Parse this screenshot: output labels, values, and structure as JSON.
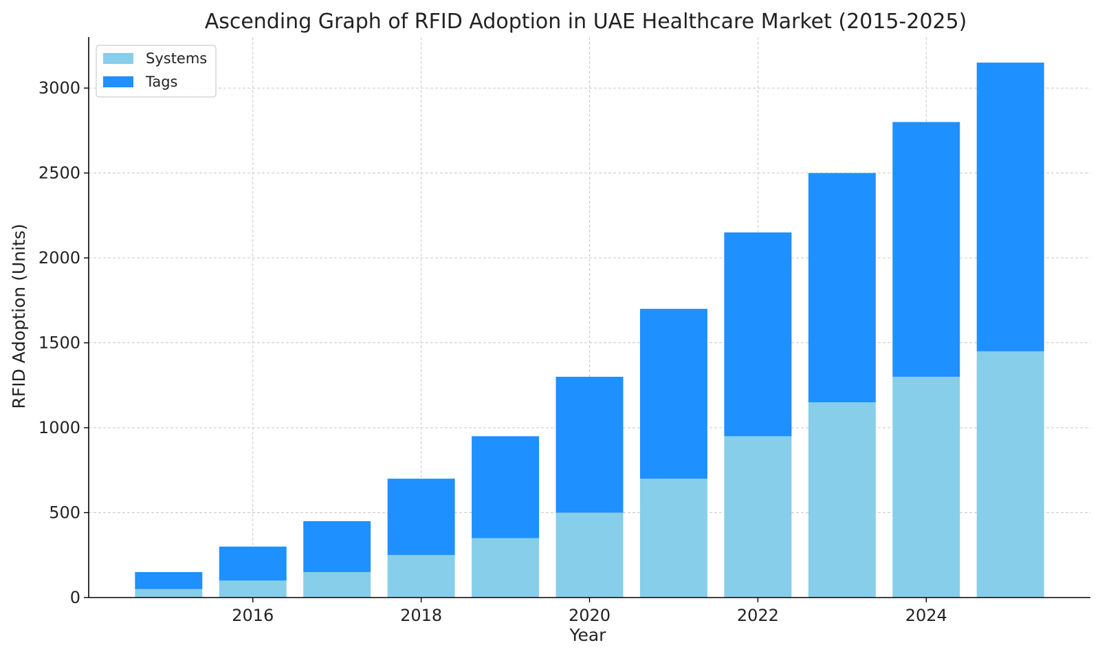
{
  "chart_data": {
    "type": "bar",
    "stacked": true,
    "title": "Ascending Graph of RFID Adoption in UAE Healthcare Market (2015-2025)",
    "xlabel": "Year",
    "ylabel": "RFID Adoption (Units)",
    "x": [
      2015,
      2016,
      2017,
      2018,
      2019,
      2020,
      2021,
      2022,
      2023,
      2024,
      2025
    ],
    "xlim": [
      2014.05,
      2025.95
    ],
    "xticks": [
      2016,
      2018,
      2020,
      2022,
      2024
    ],
    "ylim": [
      0,
      3300
    ],
    "yticks": [
      0,
      500,
      1000,
      1500,
      2000,
      2500,
      3000
    ],
    "grid": true,
    "legend_position": "top-left",
    "series": [
      {
        "name": "Systems",
        "color": "#87CEEB",
        "values": [
          50,
          100,
          150,
          250,
          350,
          500,
          700,
          950,
          1150,
          1300,
          1450
        ]
      },
      {
        "name": "Tags",
        "color": "#1E90FF",
        "values": [
          100,
          200,
          300,
          450,
          600,
          800,
          1000,
          1200,
          1350,
          1500,
          1700
        ]
      }
    ]
  }
}
